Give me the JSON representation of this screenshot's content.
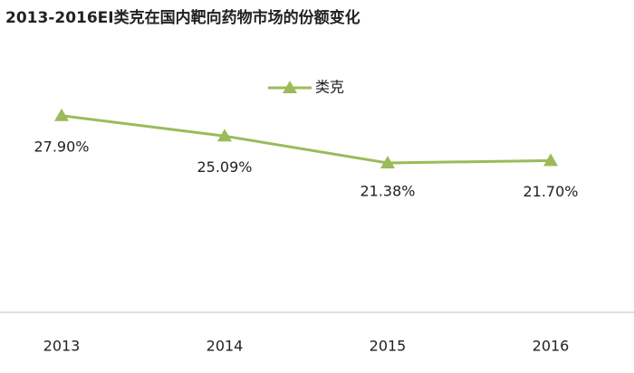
{
  "chart_data": {
    "type": "line",
    "title": "2013-2016EI类克在国内靶向药物市场的份额变化",
    "categories": [
      "2013",
      "2014",
      "2015",
      "2016"
    ],
    "series": [
      {
        "name": "类克",
        "color": "#9bbb59",
        "values": [
          27.9,
          25.09,
          21.38,
          21.7
        ],
        "value_labels": [
          "27.90%",
          "25.09%",
          "21.38%",
          "21.70%"
        ]
      }
    ]
  }
}
